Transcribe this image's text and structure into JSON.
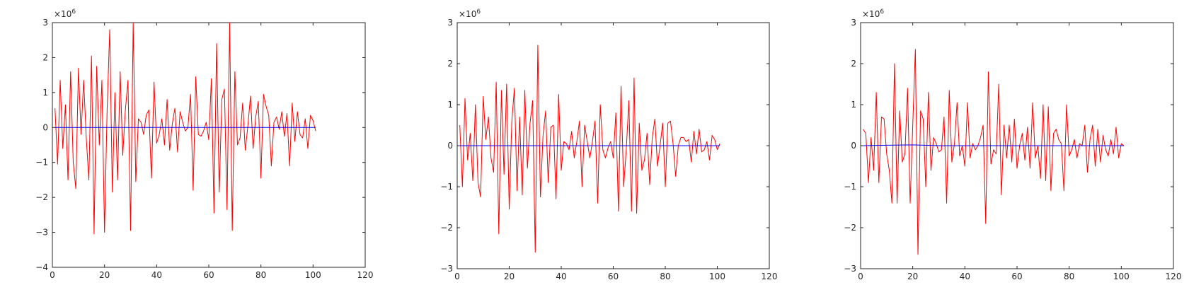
{
  "chart_data": [
    {
      "type": "line",
      "title": "",
      "xlabel": "",
      "ylabel": "",
      "xlim": [
        0,
        120
      ],
      "ylim": [
        -4,
        3
      ],
      "exponent_label": "×10",
      "exponent_power": "6",
      "x_ticks": [
        0,
        20,
        40,
        60,
        80,
        100,
        120
      ],
      "y_ticks": [
        -4,
        -3,
        -2,
        -1,
        0,
        1,
        2,
        3
      ],
      "x_tick_labels": [
        "0",
        "20",
        "40",
        "60",
        "80",
        "100",
        "120"
      ],
      "y_tick_labels": [
        "−4",
        "−3",
        "−2",
        "−1",
        "0",
        "1",
        "2",
        "3"
      ],
      "grid": false,
      "series": [
        {
          "name": "red",
          "color": "#ff0000",
          "x": [
            1,
            2,
            3,
            4,
            5,
            6,
            7,
            8,
            9,
            10,
            11,
            12,
            13,
            14,
            15,
            16,
            17,
            18,
            19,
            20,
            21,
            22,
            23,
            24,
            25,
            26,
            27,
            28,
            29,
            30,
            31,
            32,
            33,
            34,
            35,
            36,
            37,
            38,
            39,
            40,
            41,
            42,
            43,
            44,
            45,
            46,
            47,
            48,
            49,
            50,
            51,
            52,
            53,
            54,
            55,
            56,
            57,
            58,
            59,
            60,
            61,
            62,
            63,
            64,
            65,
            66,
            67,
            68,
            69,
            70,
            71,
            72,
            73,
            74,
            75,
            76,
            77,
            78,
            79,
            80,
            81,
            82,
            83,
            84,
            85,
            86,
            87,
            88,
            89,
            90,
            91,
            92,
            93,
            94,
            95,
            96,
            97,
            98,
            99,
            100,
            101
          ],
          "values": [
            0.55,
            -1.05,
            1.35,
            -0.6,
            0.65,
            -1.5,
            1.6,
            -1.0,
            -1.75,
            1.7,
            -0.2,
            1.35,
            -0.3,
            -1.5,
            2.05,
            -3.05,
            1.75,
            -0.5,
            1.35,
            -3.0,
            0.5,
            2.8,
            -1.85,
            1.0,
            -1.5,
            1.6,
            -0.8,
            0.5,
            1.35,
            -2.95,
            3.0,
            -1.55,
            0.25,
            0.15,
            -0.2,
            0.35,
            0.5,
            -1.45,
            1.3,
            -0.45,
            -0.2,
            0.25,
            -0.5,
            0.8,
            -0.65,
            0.1,
            0.55,
            -0.7,
            0.45,
            0.15,
            -0.1,
            0.0,
            0.95,
            -1.8,
            1.45,
            -0.2,
            -0.25,
            -0.1,
            0.15,
            -0.35,
            1.4,
            -2.45,
            2.4,
            -1.85,
            0.8,
            1.1,
            -2.35,
            3.0,
            -2.95,
            1.6,
            -0.5,
            -0.3,
            0.7,
            -0.65,
            0.05,
            0.9,
            -0.6,
            0.3,
            0.75,
            -1.45,
            0.95,
            0.6,
            0.35,
            -1.1,
            0.15,
            0.3,
            -0.05,
            0.45,
            -0.25,
            0.4,
            -1.1,
            0.7,
            -0.4,
            0.45,
            -0.2,
            -0.3,
            0.25,
            -0.6,
            0.35,
            0.2,
            -0.1
          ],
          "style": "solid"
        },
        {
          "name": "blue",
          "color": "#0000ff",
          "x": [
            1,
            10,
            20,
            30,
            40,
            50,
            60,
            70,
            80,
            90,
            101
          ],
          "values": [
            0.0,
            0.0,
            0.0,
            0.0,
            0.0,
            0.0,
            0.0,
            0.0,
            0.0,
            0.0,
            0.0
          ],
          "style": "solid"
        }
      ]
    },
    {
      "type": "line",
      "title": "",
      "xlabel": "",
      "ylabel": "",
      "xlim": [
        0,
        120
      ],
      "ylim": [
        -3,
        3
      ],
      "exponent_label": "×10",
      "exponent_power": "6",
      "x_ticks": [
        0,
        20,
        40,
        60,
        80,
        100,
        120
      ],
      "y_ticks": [
        -3,
        -2,
        -1,
        0,
        1,
        2,
        3
      ],
      "x_tick_labels": [
        "0",
        "20",
        "40",
        "60",
        "80",
        "100",
        "120"
      ],
      "y_tick_labels": [
        "−3",
        "−2",
        "−1",
        "0",
        "1",
        "2",
        "3"
      ],
      "grid": false,
      "series": [
        {
          "name": "red",
          "color": "#ff0000",
          "x": [
            1,
            2,
            3,
            4,
            5,
            6,
            7,
            8,
            9,
            10,
            11,
            12,
            13,
            14,
            15,
            16,
            17,
            18,
            19,
            20,
            21,
            22,
            23,
            24,
            25,
            26,
            27,
            28,
            29,
            30,
            31,
            32,
            33,
            34,
            35,
            36,
            37,
            38,
            39,
            40,
            41,
            42,
            43,
            44,
            45,
            46,
            47,
            48,
            49,
            50,
            51,
            52,
            53,
            54,
            55,
            56,
            57,
            58,
            59,
            60,
            61,
            62,
            63,
            64,
            65,
            66,
            67,
            68,
            69,
            70,
            71,
            72,
            73,
            74,
            75,
            76,
            77,
            78,
            79,
            80,
            81,
            82,
            83,
            84,
            85,
            86,
            87,
            88,
            89,
            90,
            91,
            92,
            93,
            94,
            95,
            96,
            97,
            98,
            99,
            100,
            101
          ],
          "values": [
            0.5,
            -1.0,
            1.15,
            -0.35,
            0.3,
            -0.85,
            1.0,
            -0.9,
            -1.25,
            1.2,
            0.15,
            0.7,
            -0.3,
            -0.65,
            1.55,
            -2.15,
            1.35,
            -0.7,
            1.5,
            -1.55,
            0.6,
            1.4,
            -1.1,
            0.7,
            -1.2,
            1.35,
            -0.55,
            0.55,
            1.1,
            -2.6,
            2.45,
            -1.25,
            0.25,
            0.85,
            -0.9,
            0.45,
            0.5,
            -1.3,
            1.25,
            -0.6,
            0.1,
            0.05,
            -0.1,
            0.35,
            -0.3,
            0.1,
            0.6,
            -1.0,
            0.5,
            0.1,
            -0.3,
            0.1,
            0.6,
            -1.4,
            1.0,
            -0.1,
            -0.3,
            -0.05,
            0.1,
            -0.3,
            0.8,
            -1.6,
            1.45,
            -1.0,
            -0.1,
            1.1,
            -1.6,
            1.65,
            -1.65,
            0.55,
            -0.6,
            -0.35,
            0.3,
            -0.95,
            0.2,
            0.65,
            -0.5,
            0.0,
            0.55,
            -1.0,
            0.55,
            0.6,
            0.05,
            -0.75,
            0.0,
            0.2,
            0.2,
            0.1,
            0.15,
            -0.4,
            0.35,
            -0.2,
            0.4,
            -0.15,
            -0.1,
            0.1,
            -0.35,
            0.25,
            0.15,
            -0.1,
            0.05
          ],
          "style": "solid"
        },
        {
          "name": "blue",
          "color": "#0000ff",
          "x": [
            1,
            10,
            20,
            30,
            40,
            50,
            60,
            70,
            80,
            90,
            101
          ],
          "values": [
            0.0,
            0.0,
            0.0,
            0.0,
            0.0,
            0.0,
            0.0,
            0.0,
            0.0,
            0.0,
            0.0
          ],
          "style": "solid"
        }
      ]
    },
    {
      "type": "line",
      "title": "",
      "xlabel": "",
      "ylabel": "",
      "xlim": [
        0,
        120
      ],
      "ylim": [
        -3,
        3
      ],
      "exponent_label": "×10",
      "exponent_power": "6",
      "x_ticks": [
        0,
        20,
        40,
        60,
        80,
        100,
        120
      ],
      "y_ticks": [
        -3,
        -2,
        -1,
        0,
        1,
        2,
        3
      ],
      "x_tick_labels": [
        "0",
        "20",
        "40",
        "60",
        "80",
        "100",
        "120"
      ],
      "y_tick_labels": [
        "−3",
        "−2",
        "−1",
        "0",
        "1",
        "2",
        "3"
      ],
      "grid": false,
      "series": [
        {
          "name": "red",
          "color": "#ff0000",
          "x": [
            1,
            2,
            3,
            4,
            5,
            6,
            7,
            8,
            9,
            10,
            11,
            12,
            13,
            14,
            15,
            16,
            17,
            18,
            19,
            20,
            21,
            22,
            23,
            24,
            25,
            26,
            27,
            28,
            29,
            30,
            31,
            32,
            33,
            34,
            35,
            36,
            37,
            38,
            39,
            40,
            41,
            42,
            43,
            44,
            45,
            46,
            47,
            48,
            49,
            50,
            51,
            52,
            53,
            54,
            55,
            56,
            57,
            58,
            59,
            60,
            61,
            62,
            63,
            64,
            65,
            66,
            67,
            68,
            69,
            70,
            71,
            72,
            73,
            74,
            75,
            76,
            77,
            78,
            79,
            80,
            81,
            82,
            83,
            84,
            85,
            86,
            87,
            88,
            89,
            90,
            91,
            92,
            93,
            94,
            95,
            96,
            97,
            98,
            99,
            100,
            101
          ],
          "values": [
            0.4,
            0.3,
            -0.9,
            0.2,
            -0.6,
            1.3,
            -0.9,
            0.7,
            0.65,
            -0.2,
            -0.6,
            -1.4,
            2.0,
            -1.4,
            0.85,
            -0.4,
            -0.2,
            1.4,
            -1.4,
            0.5,
            2.35,
            -2.65,
            0.85,
            0.65,
            -1.0,
            1.3,
            -0.6,
            0.2,
            0.05,
            -0.15,
            -0.1,
            0.7,
            -1.4,
            1.35,
            -0.4,
            0.05,
            1.05,
            -0.25,
            0.0,
            -0.5,
            1.05,
            -0.3,
            0.05,
            -0.1,
            0.0,
            0.2,
            0.5,
            -1.9,
            1.8,
            -0.45,
            -0.1,
            -0.2,
            1.5,
            -1.2,
            0.5,
            -0.3,
            0.5,
            -0.4,
            0.65,
            -0.55,
            0.0,
            0.3,
            -0.35,
            0.45,
            -0.55,
            1.05,
            -0.3,
            0.0,
            -0.8,
            1.0,
            -0.85,
            0.95,
            -1.1,
            0.3,
            0.4,
            0.15,
            0.05,
            -1.1,
            1.0,
            -0.25,
            -0.1,
            0.15,
            -0.3,
            0.05,
            0.0,
            0.5,
            -0.65,
            0.15,
            0.5,
            -0.5,
            0.4,
            -0.4,
            0.25,
            -0.1,
            -0.25,
            0.15,
            -0.2,
            0.45,
            -0.3,
            0.05,
            0.0
          ],
          "style": "solid"
        },
        {
          "name": "blue",
          "color": "#0000ff",
          "x": [
            1,
            10,
            20,
            30,
            40,
            50,
            60,
            70,
            80,
            90,
            101
          ],
          "values": [
            0.0,
            0.01,
            0.02,
            0.0,
            0.0,
            0.0,
            0.0,
            0.0,
            0.0,
            0.0,
            0.0
          ],
          "style": "solid"
        }
      ]
    }
  ]
}
